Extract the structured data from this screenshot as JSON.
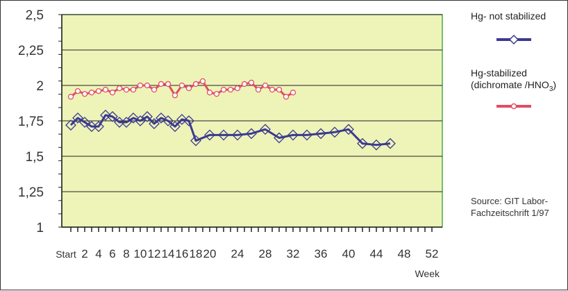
{
  "chart_data": {
    "type": "line",
    "ylim": [
      1,
      2.5
    ],
    "yticks": [
      1,
      1.25,
      1.5,
      1.75,
      2,
      2.25,
      2.5
    ],
    "ytick_labels": [
      "1",
      "1,25",
      "1,5",
      "1,75",
      "2",
      "2,25",
      "2,5"
    ],
    "x": [
      0,
      1,
      2,
      3,
      4,
      5,
      6,
      7,
      8,
      9,
      10,
      11,
      12,
      13,
      14,
      15,
      16,
      17,
      18,
      19,
      20,
      21,
      22,
      23,
      24,
      25,
      26,
      27,
      28,
      29,
      30,
      31,
      32,
      33,
      34,
      35,
      36,
      37,
      38,
      39,
      40,
      41,
      42,
      43,
      44,
      45,
      46,
      47,
      48,
      49,
      50,
      51,
      52
    ],
    "xtick_labels": [
      {
        "x": 0,
        "label": "Start"
      },
      {
        "x": 2,
        "label": "2"
      },
      {
        "x": 4,
        "label": "4"
      },
      {
        "x": 6,
        "label": "6"
      },
      {
        "x": 8,
        "label": "8"
      },
      {
        "x": 10,
        "label": "10"
      },
      {
        "x": 12,
        "label": "12"
      },
      {
        "x": 14,
        "label": "14"
      },
      {
        "x": 16,
        "label": "16"
      },
      {
        "x": 18,
        "label": "18"
      },
      {
        "x": 20,
        "label": "20"
      },
      {
        "x": 24,
        "label": "24"
      },
      {
        "x": 28,
        "label": "28"
      },
      {
        "x": 32,
        "label": "32"
      },
      {
        "x": 36,
        "label": "36"
      },
      {
        "x": 40,
        "label": "40"
      },
      {
        "x": 44,
        "label": "44"
      },
      {
        "x": 48,
        "label": "48"
      },
      {
        "x": 52,
        "label": "52"
      }
    ],
    "xlabel": "Week",
    "grid": true,
    "legend_position": "right",
    "series": [
      {
        "name": "Hg- not stabilized",
        "color": "#3b3a8f",
        "marker": "diamond",
        "points": [
          [
            0,
            1.72
          ],
          [
            1,
            1.77
          ],
          [
            2,
            1.74
          ],
          [
            3,
            1.71
          ],
          [
            4,
            1.71
          ],
          [
            5,
            1.79
          ],
          [
            6,
            1.78
          ],
          [
            7,
            1.74
          ],
          [
            8,
            1.74
          ],
          [
            9,
            1.77
          ],
          [
            10,
            1.75
          ],
          [
            11,
            1.78
          ],
          [
            12,
            1.73
          ],
          [
            13,
            1.77
          ],
          [
            14,
            1.75
          ],
          [
            15,
            1.71
          ],
          [
            16,
            1.76
          ],
          [
            17,
            1.75
          ],
          [
            18,
            1.61
          ],
          [
            20,
            1.65
          ],
          [
            22,
            1.65
          ],
          [
            24,
            1.65
          ],
          [
            26,
            1.66
          ],
          [
            28,
            1.69
          ],
          [
            30,
            1.63
          ],
          [
            32,
            1.65
          ],
          [
            34,
            1.65
          ],
          [
            36,
            1.66
          ],
          [
            38,
            1.67
          ],
          [
            40,
            1.69
          ],
          [
            42,
            1.59
          ],
          [
            44,
            1.58
          ],
          [
            46,
            1.59
          ]
        ]
      },
      {
        "name": "Hg-stabilized (dichromate /HNO3)",
        "color": "#e04d63",
        "marker": "circle",
        "points": [
          [
            0,
            1.92
          ],
          [
            1,
            1.96
          ],
          [
            2,
            1.94
          ],
          [
            3,
            1.95
          ],
          [
            4,
            1.96
          ],
          [
            5,
            1.97
          ],
          [
            6,
            1.95
          ],
          [
            7,
            1.98
          ],
          [
            8,
            1.97
          ],
          [
            9,
            1.97
          ],
          [
            10,
            2.0
          ],
          [
            11,
            2.0
          ],
          [
            12,
            1.97
          ],
          [
            13,
            2.01
          ],
          [
            14,
            2.01
          ],
          [
            15,
            1.93
          ],
          [
            16,
            2.0
          ],
          [
            17,
            1.98
          ],
          [
            18,
            2.01
          ],
          [
            19,
            2.03
          ],
          [
            20,
            1.95
          ],
          [
            21,
            1.94
          ],
          [
            22,
            1.97
          ],
          [
            23,
            1.97
          ],
          [
            24,
            1.98
          ],
          [
            25,
            2.01
          ],
          [
            26,
            2.02
          ],
          [
            27,
            1.97
          ],
          [
            28,
            2.0
          ],
          [
            29,
            1.97
          ],
          [
            30,
            1.97
          ],
          [
            31,
            1.92
          ],
          [
            32,
            1.95
          ]
        ]
      }
    ]
  },
  "legend": {
    "series1_label": "Hg- not stabilized",
    "series2_label_line1": "Hg-stabilized",
    "series2_label_line2_prefix": "(dichromate /HNO",
    "series2_label_line2_sub": "3",
    "series2_label_line2_suffix": ")"
  },
  "source": {
    "line1": "Source: GIT Labor-",
    "line2": "Fachzeitschrift 1/97"
  },
  "colors": {
    "plot_background": "#eef3b8",
    "grid": "#222222",
    "plot_border": "#4aa84a"
  }
}
